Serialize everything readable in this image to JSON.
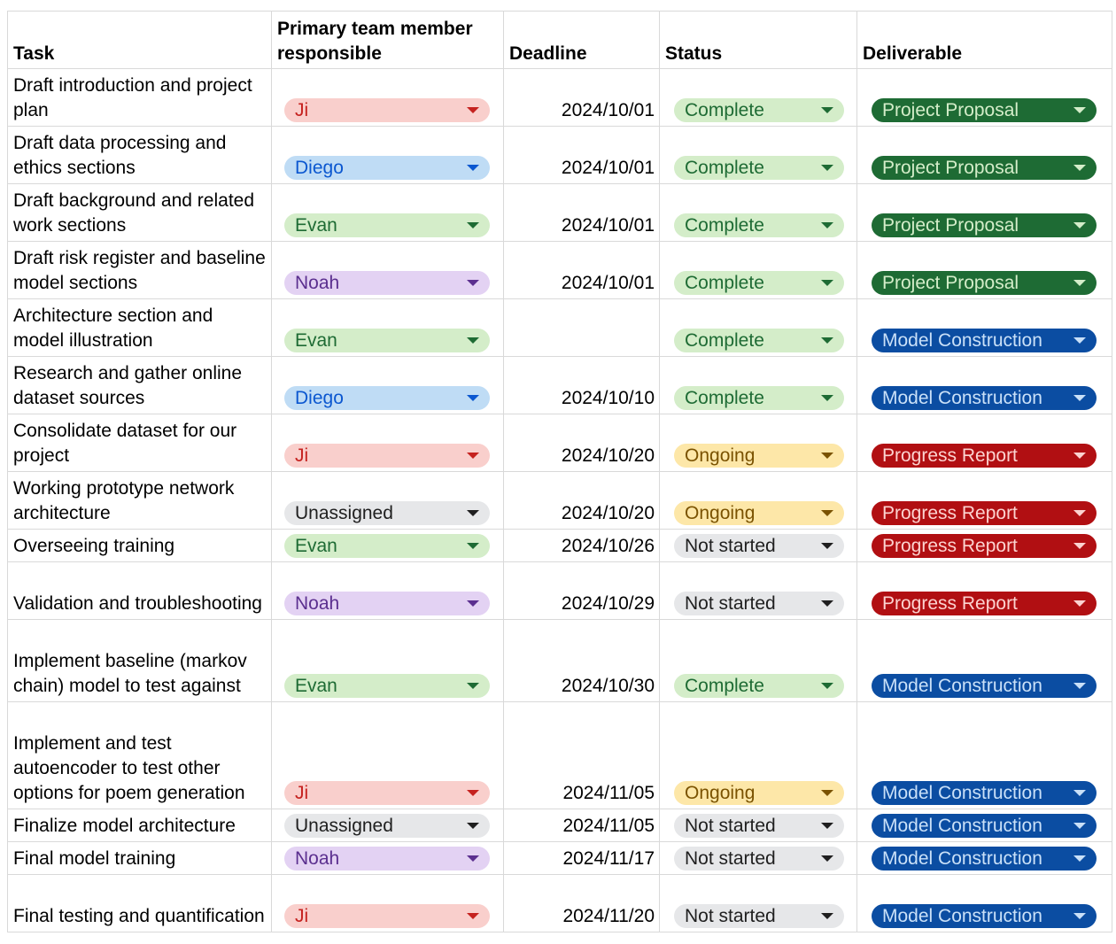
{
  "headers": {
    "task": "Task",
    "member": "Primary team member responsible",
    "deadline": "Deadline",
    "status": "Status",
    "deliverable": "Deliverable"
  },
  "chip_colors": {
    "member": {
      "Ji": {
        "bg": "#f9cfcc",
        "fg": "#c5221f"
      },
      "Diego": {
        "bg": "#bfdcf5",
        "fg": "#0b57d0"
      },
      "Evan": {
        "bg": "#d4edc9",
        "fg": "#1e6b34"
      },
      "Noah": {
        "bg": "#e3d2f3",
        "fg": "#5b2f8f"
      },
      "Unassigned": {
        "bg": "#e6e7e9",
        "fg": "#1f1f1f"
      }
    },
    "status": {
      "Complete": {
        "bg": "#d4edc9",
        "fg": "#1e6b34"
      },
      "Ongoing": {
        "bg": "#fde7a8",
        "fg": "#7a5200"
      },
      "Not started": {
        "bg": "#e6e7e9",
        "fg": "#1f1f1f"
      }
    },
    "deliverable": {
      "Project Proposal": {
        "bg": "#1e6b34",
        "fg": "#d4edc9"
      },
      "Model Construction": {
        "bg": "#0b4da2",
        "fg": "#c9e0f8"
      },
      "Progress Report": {
        "bg": "#b10f12",
        "fg": "#fcd3d0"
      }
    }
  },
  "rows": [
    {
      "task": "Draft introduction and project plan",
      "member": "Ji",
      "deadline": "2024/10/01",
      "status": "Complete",
      "deliverable": "Project Proposal"
    },
    {
      "task": "Draft data processing and ethics sections",
      "member": "Diego",
      "deadline": "2024/10/01",
      "status": "Complete",
      "deliverable": "Project Proposal"
    },
    {
      "task": "Draft background and related work sections",
      "member": "Evan",
      "deadline": "2024/10/01",
      "status": "Complete",
      "deliverable": "Project Proposal"
    },
    {
      "task": "Draft risk register and baseline model sections",
      "member": "Noah",
      "deadline": "2024/10/01",
      "status": "Complete",
      "deliverable": "Project Proposal"
    },
    {
      "task": "Architecture section and model illustration",
      "member": "Evan",
      "deadline": "",
      "status": "Complete",
      "deliverable": "Model Construction"
    },
    {
      "task": "Research and gather online dataset sources",
      "member": "Diego",
      "deadline": "2024/10/10",
      "status": "Complete",
      "deliverable": "Model Construction"
    },
    {
      "task": "Consolidate dataset for our project",
      "member": "Ji",
      "deadline": "2024/10/20",
      "status": "Ongoing",
      "deliverable": "Progress Report"
    },
    {
      "task": "Working prototype network architecture",
      "member": "Unassigned",
      "deadline": "2024/10/20",
      "status": "Ongoing",
      "deliverable": "Progress Report"
    },
    {
      "task": "Overseeing training",
      "member": "Evan",
      "deadline": "2024/10/26",
      "status": "Not started",
      "deliverable": "Progress Report"
    },
    {
      "task": "Validation and troubleshooting",
      "member": "Noah",
      "deadline": "2024/10/29",
      "status": "Not started",
      "deliverable": "Progress Report"
    },
    {
      "task": "Implement baseline (markov chain) model to test against",
      "member": "Evan",
      "deadline": "2024/10/30",
      "status": "Complete",
      "deliverable": "Model Construction"
    },
    {
      "task": "Implement and test autoencoder to test other options for poem generation",
      "member": "Ji",
      "deadline": "2024/11/05",
      "status": "Ongoing",
      "deliverable": "Model Construction"
    },
    {
      "task": "Finalize model architecture",
      "member": "Unassigned",
      "deadline": "2024/11/05",
      "status": "Not started",
      "deliverable": "Model Construction"
    },
    {
      "task": "Final model training",
      "member": "Noah",
      "deadline": "2024/11/17",
      "status": "Not started",
      "deliverable": "Model Construction"
    },
    {
      "task": "Final testing and quantification",
      "member": "Ji",
      "deadline": "2024/11/20",
      "status": "Not started",
      "deliverable": "Model Construction"
    }
  ]
}
